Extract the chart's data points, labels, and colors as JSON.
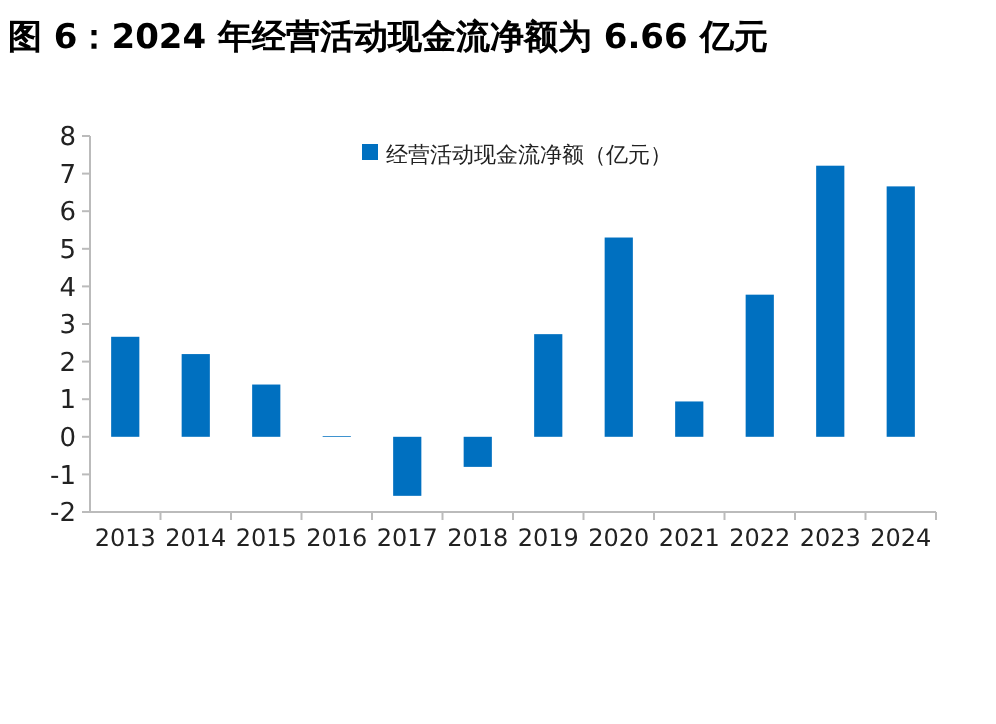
{
  "chart_data": {
    "type": "bar",
    "title": "图 6：2024 年经营活动现金流净额为 6.66 亿元",
    "categories": [
      "2013",
      "2014",
      "2015",
      "2016",
      "2017",
      "2018",
      "2019",
      "2020",
      "2021",
      "2022",
      "2023",
      "2024"
    ],
    "series": [
      {
        "name": "经营活动现金流净额（亿元）",
        "color": "#0070c0",
        "values": [
          2.66,
          2.2,
          1.39,
          0.02,
          -1.57,
          -0.8,
          2.73,
          5.3,
          0.94,
          3.78,
          7.21,
          6.66
        ]
      }
    ],
    "ylim": [
      -2,
      8
    ],
    "yticks": [
      -2,
      -1,
      0,
      1,
      2,
      3,
      4,
      5,
      6,
      7,
      8
    ],
    "grid": false,
    "legend": "top"
  }
}
